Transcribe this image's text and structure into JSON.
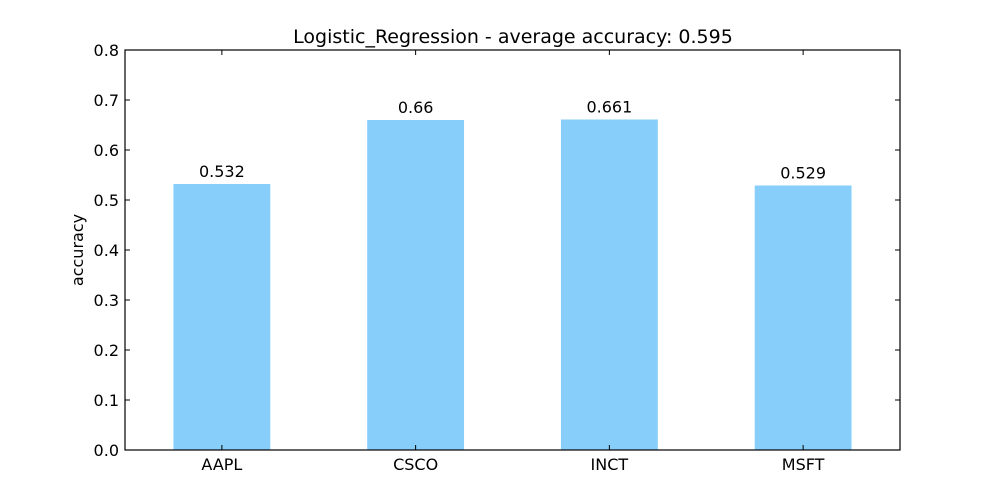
{
  "chart_data": {
    "type": "bar",
    "title": "Logistic_Regression - average accuracy: 0.595",
    "xlabel": "",
    "ylabel": "accuracy",
    "categories": [
      "AAPL",
      "CSCO",
      "INCT",
      "MSFT"
    ],
    "values": [
      0.532,
      0.66,
      0.661,
      0.529
    ],
    "value_labels": [
      "0.532",
      "0.66",
      "0.661",
      "0.529"
    ],
    "ylim": [
      0.0,
      0.8
    ],
    "yticks": [
      "0.0",
      "0.1",
      "0.2",
      "0.3",
      "0.4",
      "0.5",
      "0.6",
      "0.7",
      "0.8"
    ],
    "grid": false,
    "legend": "none",
    "bar_color": "#87CEFA"
  }
}
